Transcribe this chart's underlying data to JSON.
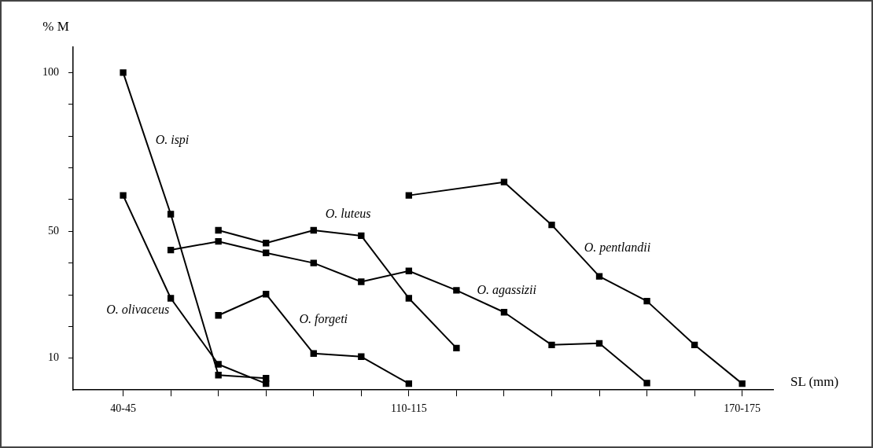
{
  "chart_data": {
    "type": "line",
    "xlabel": "SL (mm)",
    "ylabel": "% M",
    "categories": [
      "40-45",
      null,
      null,
      null,
      null,
      null,
      "110-115",
      null,
      null,
      null,
      null,
      null,
      null,
      "170-175"
    ],
    "ylim": [
      0,
      108
    ],
    "yticks": [
      {
        "value": 10,
        "label": "10"
      },
      {
        "value": 20,
        "label": null
      },
      {
        "value": 30,
        "label": null
      },
      {
        "value": 40,
        "label": null
      },
      {
        "value": 50,
        "label": "50"
      },
      {
        "value": 60,
        "label": null
      },
      {
        "value": 70,
        "label": null
      },
      {
        "value": 80,
        "label": null
      },
      {
        "value": 90,
        "label": null
      },
      {
        "value": 100,
        "label": "100"
      }
    ],
    "grid": false,
    "legend": false,
    "marker": "square",
    "line_style": "solid",
    "series": [
      {
        "name": "O. ispi",
        "color": "#000000",
        "values": [
          100,
          55.4,
          4.7,
          3.7,
          null,
          null,
          null,
          null,
          null,
          null,
          null,
          null,
          null,
          null
        ]
      },
      {
        "name": "O. olivaceus",
        "color": "#000000",
        "values": [
          61.3,
          28.9,
          8.1,
          2.0,
          null,
          null,
          null,
          null,
          null,
          null,
          null,
          null,
          null,
          null
        ]
      },
      {
        "name": "O. luteus",
        "color": "#000000",
        "values": [
          null,
          null,
          50.3,
          46.3,
          50.3,
          48.6,
          28.9,
          13.2,
          null,
          null,
          null,
          null,
          null,
          null
        ]
      },
      {
        "name": "O. forgeti",
        "color": "#000000",
        "values": [
          null,
          null,
          23.5,
          30.2,
          11.5,
          10.5,
          2.0,
          null,
          null,
          null,
          null,
          null,
          null,
          null
        ]
      },
      {
        "name": "O. agassizii",
        "color": "#000000",
        "values": [
          null,
          44.1,
          46.8,
          43.2,
          40.0,
          34.1,
          37.5,
          31.4,
          24.5,
          14.2,
          14.7,
          2.2,
          null,
          null
        ]
      },
      {
        "name": "O. pentlandii",
        "color": "#000000",
        "values": [
          null,
          null,
          null,
          null,
          null,
          null,
          61.3,
          null,
          65.5,
          52.0,
          35.8,
          28.0,
          14.2,
          2.0
        ]
      }
    ]
  }
}
